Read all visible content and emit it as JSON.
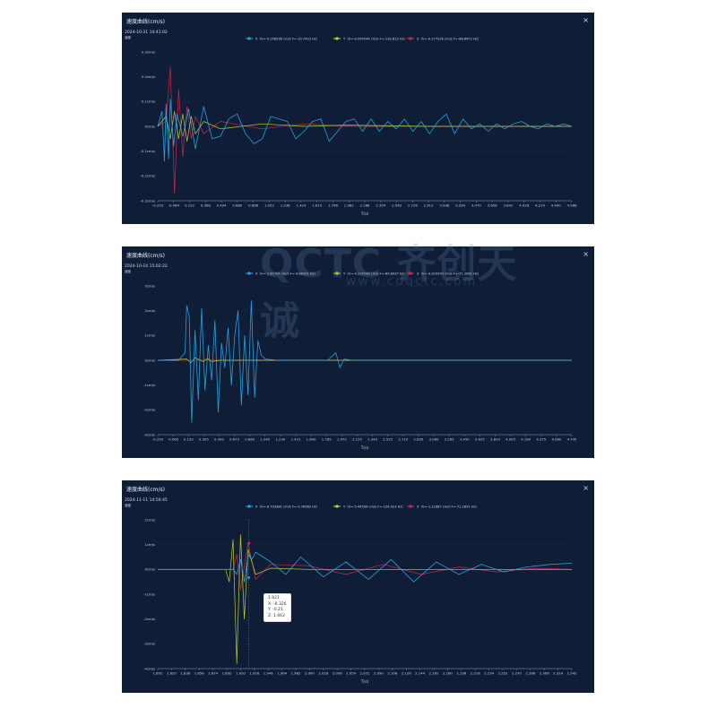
{
  "watermark": {
    "logo": "QCTC",
    "cn": "齐创天诚",
    "url": "www.cdqctc.com"
  },
  "colors": {
    "x": "#2aa7e8",
    "y": "#c8d82e",
    "z": "#d7294f",
    "orange": "#e8a020",
    "grid": "#1f3554",
    "axis": "#8aa0bd"
  },
  "panels": [
    {
      "title": "速度曲线(cm/s)",
      "close": "×",
      "timestamp": "2024-10-31 14:41:02",
      "series_label": "速度",
      "legend": {
        "x": "X（V=-0.156236 cm/s F=-10.7422 Hz）",
        "y": "Y（V=-0.054544 cm/s F=-132.812 Hz）",
        "z": "Z（V=-0.277228 cm/s F=-68.8672 Hz）"
      },
      "yticks": [
        "0.3cm/s",
        "0.2cm/s",
        "0.1cm/s",
        "0cm/s",
        "-0.1cm/s",
        "-0.2cm/s",
        "-0.3cm/s"
      ],
      "xticks": [
        "-0.250",
        "-0.064",
        "0.122",
        "0.308",
        "0.494",
        "0.680",
        "0.866",
        "1.052",
        "1.238",
        "1.424",
        "1.610",
        "1.796",
        "1.982",
        "2.168",
        "2.354",
        "2.540",
        "2.726",
        "2.912",
        "3.098",
        "3.284",
        "3.470",
        "3.656",
        "3.842",
        "4.028",
        "4.214",
        "4.400",
        "4.586"
      ],
      "xlabel": "T(s)"
    },
    {
      "title": "速度曲线(cm/s)",
      "close": "×",
      "timestamp": "2024-10-24 15:02:22",
      "series_label": "速度",
      "legend": {
        "x": "X（V=-2.62794 cm/s F=-4.88281 Hz）",
        "y": "Y（V=-0.235548 cm/s F=-89.8437 Hz）",
        "z": "Z（V=-0.203294 cm/s F=-71.2891 Hz）"
      },
      "yticks": [
        "3cm/s",
        "2cm/s",
        "1cm/s",
        "0cm/s",
        "-1cm/s",
        "-2cm/s",
        "-3cm/s"
      ],
      "xticks": [
        "-0.250",
        "-0.065",
        "0.120",
        "0.305",
        "0.490",
        "0.675",
        "0.860",
        "1.045",
        "1.230",
        "1.415",
        "1.600",
        "1.785",
        "1.970",
        "2.155",
        "2.340",
        "2.525",
        "2.710",
        "2.895",
        "3.080",
        "3.265",
        "3.450",
        "3.635",
        "3.820",
        "4.005",
        "4.190",
        "4.375",
        "4.560",
        "4.745"
      ],
      "xlabel": "T(s)"
    },
    {
      "title": "速度曲线(cm/s)",
      "close": "×",
      "timestamp": "2024-11-11 14:56:45",
      "series_label": "速度",
      "legend": {
        "x": "X（V=-8.703381 cm/s F=-9.76562 Hz）",
        "y": "Y（V=-5.44506 cm/s F=-124.023 Hz）",
        "z": "Z（V=-1.21887 cm/s F=-71.2891 Hz）"
      },
      "yticks": [
        "2cm/s",
        "1cm/s",
        "0cm/s",
        "-1cm/s",
        "-2cm/s",
        "-3cm/s",
        "-4cm/s"
      ],
      "xticks": [
        "1.802",
        "1.820",
        "1.838",
        "1.856",
        "1.874",
        "1.892",
        "1.910",
        "1.928",
        "1.946",
        "1.964",
        "1.982",
        "2.000",
        "2.018",
        "2.036",
        "2.054",
        "2.072",
        "2.090",
        "2.108",
        "2.126",
        "2.144",
        "2.162",
        "2.180",
        "2.198",
        "2.216",
        "2.234",
        "2.252",
        "2.270",
        "2.288",
        "2.306",
        "2.324",
        "2.342"
      ],
      "xlabel": "T(s)",
      "tooltip": {
        "t": "1.921",
        "x": "X:  -0.326",
        "y": "Y:    -0.21",
        "z": "Z:   1.062"
      }
    }
  ],
  "chart_data": [
    {
      "type": "line",
      "title": "速度曲线(cm/s)",
      "xlabel": "T(s)",
      "ylabel": "速度",
      "xlim": [
        -0.25,
        4.7
      ],
      "ylim": [
        -0.3,
        0.3
      ],
      "series": [
        {
          "name": "X",
          "x": [
            -0.25,
            -0.2,
            -0.17,
            -0.15,
            -0.12,
            -0.1,
            -0.06,
            -0.02,
            0.05,
            0.12,
            0.2,
            0.3,
            0.4,
            0.5,
            0.6,
            0.7,
            0.8,
            0.9,
            1.0,
            1.1,
            1.2,
            1.3,
            1.4,
            1.5,
            1.6,
            1.7,
            1.8,
            1.9,
            2.0,
            2.1,
            2.2,
            2.3,
            2.4,
            2.5,
            2.6,
            2.7,
            2.8,
            2.9,
            3.0,
            3.1,
            3.2,
            3.3,
            3.4,
            3.5,
            3.6,
            3.7,
            3.8,
            3.9,
            4.0,
            4.1,
            4.2,
            4.3,
            4.4,
            4.5,
            4.6,
            4.7
          ],
          "values": [
            0,
            0.06,
            -0.14,
            0.09,
            -0.13,
            0.11,
            -0.08,
            0.05,
            -0.04,
            0.07,
            -0.09,
            0.08,
            -0.05,
            -0.04,
            0.03,
            0.05,
            -0.03,
            -0.07,
            -0.05,
            0.04,
            0.03,
            0.02,
            -0.05,
            -0.02,
            0.02,
            0.03,
            -0.06,
            -0.02,
            0.02,
            0.03,
            -0.02,
            0.03,
            -0.02,
            0.02,
            -0.01,
            0.03,
            -0.02,
            0.02,
            -0.03,
            0.02,
            0.05,
            -0.03,
            0.03,
            -0.01,
            0.01,
            -0.02,
            0.01,
            -0.01,
            0.01,
            0.02,
            0,
            -0.01,
            0.01,
            0,
            0.01,
            0
          ]
        },
        {
          "name": "Y",
          "x": [
            -0.25,
            -0.15,
            -0.1,
            -0.05,
            0.0,
            0.05,
            0.1,
            0.15,
            0.2,
            0.3,
            0.5,
            1.0,
            1.5,
            2.0,
            3.0,
            4.0,
            4.7
          ],
          "values": [
            0,
            0.04,
            -0.05,
            0.06,
            -0.05,
            0.05,
            -0.06,
            0.04,
            -0.03,
            0.02,
            -0.01,
            0.01,
            0,
            0.005,
            0,
            0,
            0
          ]
        },
        {
          "name": "Z",
          "x": [
            -0.25,
            -0.15,
            -0.1,
            -0.05,
            0.0,
            0.05,
            0.1,
            0.15,
            0.2,
            0.3,
            0.5,
            1.0,
            1.5,
            2.0,
            3.0,
            4.0,
            4.7
          ],
          "values": [
            0,
            0.02,
            0.24,
            -0.27,
            0.15,
            -0.12,
            0.08,
            -0.05,
            0.04,
            -0.03,
            0.02,
            -0.01,
            0.01,
            0,
            0,
            0,
            0
          ]
        }
      ]
    },
    {
      "type": "line",
      "title": "速度曲线(cm/s)",
      "xlabel": "T(s)",
      "ylabel": "速度",
      "xlim": [
        -0.25,
        4.75
      ],
      "ylim": [
        -3,
        3
      ],
      "series": [
        {
          "name": "X",
          "x": [
            -0.25,
            0.0,
            0.08,
            0.1,
            0.13,
            0.16,
            0.2,
            0.24,
            0.28,
            0.32,
            0.36,
            0.4,
            0.44,
            0.48,
            0.52,
            0.56,
            0.6,
            0.64,
            0.68,
            0.72,
            0.76,
            0.8,
            0.84,
            0.88,
            0.92,
            0.96,
            1.0,
            1.05,
            1.2,
            1.5,
            1.8,
            1.9,
            1.95,
            2.0,
            2.1,
            2.5,
            3.0,
            4.0,
            4.75
          ],
          "values": [
            0,
            0,
            0.3,
            2.2,
            1.8,
            -2.5,
            1.2,
            -1.6,
            2.1,
            -1.2,
            0.6,
            -0.8,
            1.6,
            -2.1,
            0.7,
            -0.3,
            1.3,
            -1.0,
            1.0,
            2.0,
            -1.8,
            1.0,
            -1.4,
            2.4,
            -1.5,
            0.8,
            0.2,
            0.05,
            0,
            0,
            0,
            0.3,
            -0.3,
            0.05,
            0,
            0,
            0,
            0,
            0
          ]
        },
        {
          "name": "Y",
          "x": [
            -0.25,
            0.1,
            0.15,
            0.2,
            0.3,
            0.35,
            0.4,
            0.5,
            4.75
          ],
          "values": [
            0,
            0.05,
            -0.1,
            0.1,
            -0.05,
            0.08,
            -0.05,
            0,
            0
          ]
        },
        {
          "name": "Z",
          "x": [
            -0.25,
            0.5,
            4.75
          ],
          "values": [
            0,
            0,
            0
          ]
        }
      ]
    },
    {
      "type": "line",
      "title": "速度曲线(cm/s)",
      "xlabel": "T(s)",
      "ylabel": "速度",
      "xlim": [
        1.8,
        2.35
      ],
      "ylim": [
        -4,
        2
      ],
      "series": [
        {
          "name": "X",
          "x": [
            1.8,
            1.9,
            1.905,
            1.91,
            1.915,
            1.92,
            1.925,
            1.93,
            1.94,
            1.95,
            1.97,
            1.99,
            2.02,
            2.05,
            2.08,
            2.11,
            2.14,
            2.17,
            2.2,
            2.23,
            2.26,
            2.29,
            2.32,
            2.35
          ],
          "values": [
            0,
            0,
            -0.2,
            0.4,
            -0.5,
            0.6,
            0.4,
            0.7,
            0.5,
            0.3,
            -0.2,
            0.5,
            -0.3,
            0.3,
            -0.4,
            0.4,
            -0.5,
            0.3,
            -0.2,
            0.2,
            -0.1,
            0.1,
            0.2,
            0.25
          ]
        },
        {
          "name": "Y",
          "x": [
            1.8,
            1.89,
            1.895,
            1.9,
            1.905,
            1.91,
            1.915,
            1.92,
            1.93,
            1.95,
            2.0,
            2.35
          ],
          "values": [
            0,
            0,
            -0.5,
            1.2,
            -3.8,
            1.4,
            -2.0,
            0.8,
            -0.2,
            0.05,
            0,
            0
          ]
        },
        {
          "name": "Z",
          "x": [
            1.8,
            1.9,
            1.905,
            1.91,
            1.92,
            1.93,
            1.95,
            2.0,
            2.05,
            2.1,
            2.15,
            2.2,
            2.25,
            2.3,
            2.35
          ],
          "values": [
            0,
            0,
            0.6,
            -0.8,
            1.062,
            -0.4,
            0.2,
            0.15,
            -0.2,
            0.2,
            -0.2,
            0.1,
            -0.1,
            0.05,
            0
          ]
        }
      ]
    }
  ]
}
